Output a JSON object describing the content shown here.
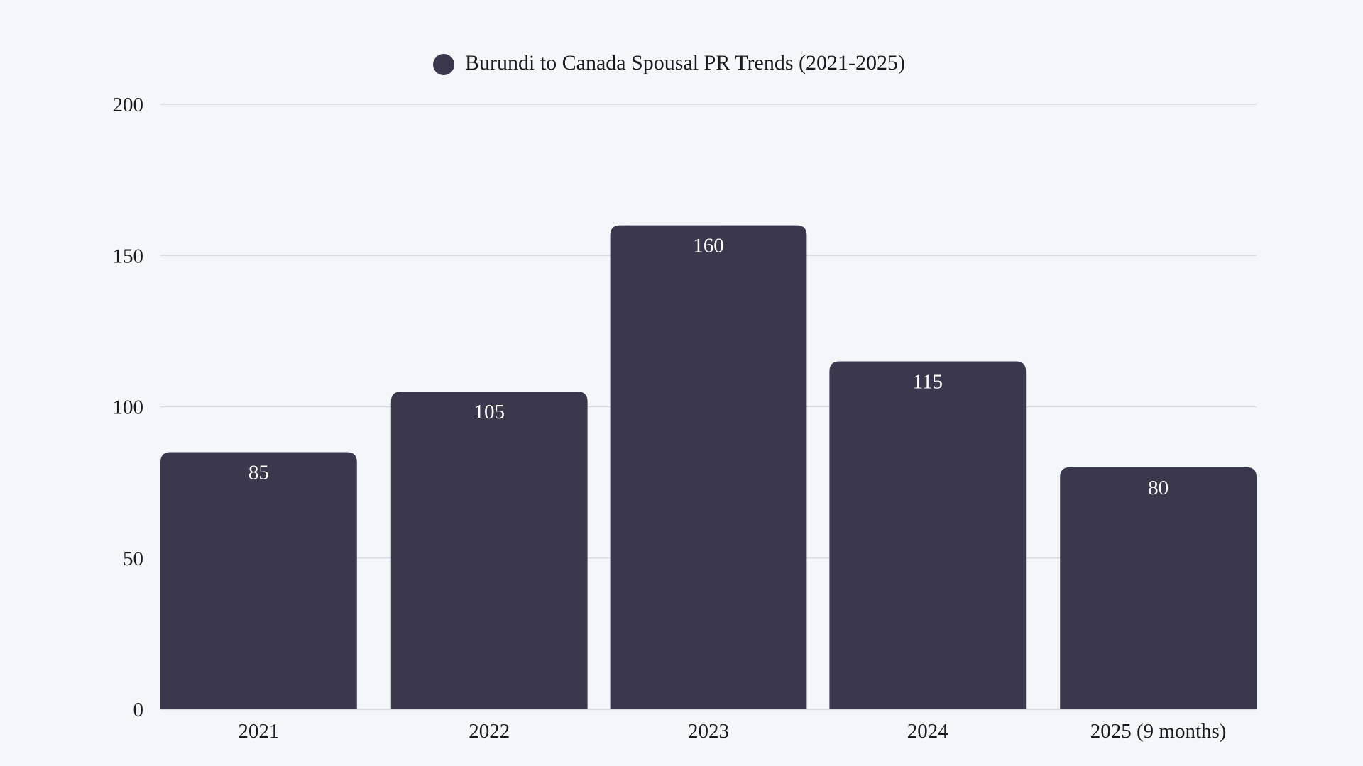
{
  "chart_data": {
    "type": "bar",
    "categories": [
      "2021",
      "2022",
      "2023",
      "2024",
      "2025 (9 months)"
    ],
    "series": [
      {
        "name": "Burundi to Canada Spousal PR Trends (2021-2025)",
        "values": [
          85,
          105,
          160,
          115,
          80
        ],
        "color": "#3b384e"
      }
    ],
    "ylim": [
      0,
      200
    ],
    "yticks": [
      0,
      50,
      100,
      150,
      200
    ],
    "grid": true,
    "legend": "top-center",
    "data_labels": true,
    "title": "",
    "xlabel": "",
    "ylabel": ""
  }
}
